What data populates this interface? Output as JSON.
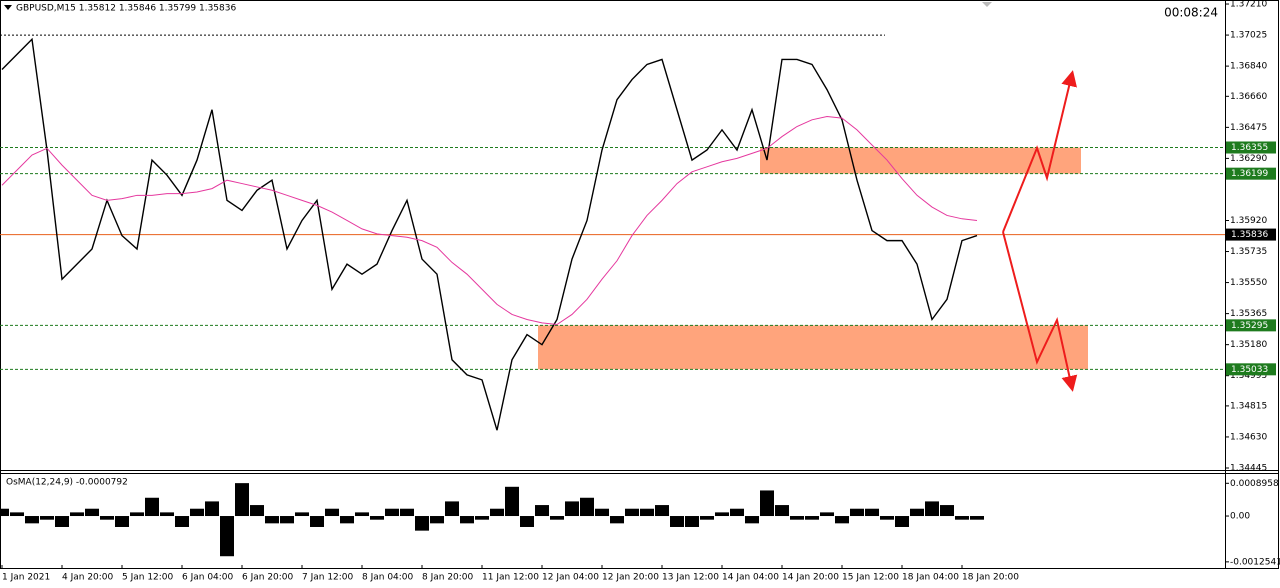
{
  "chart_data": {
    "type": "line",
    "title": "GBPUSD,M15  1.35812 1.35846 1.35799 1.35836",
    "timer": "00:08:24",
    "ylim": [
      1.34433,
      1.37234
    ],
    "yticks": [
      {
        "value": 1.3721,
        "label": "1.37210"
      },
      {
        "value": 1.37025,
        "label": "1.37025"
      },
      {
        "value": 1.3684,
        "label": "1.36840"
      },
      {
        "value": 1.3666,
        "label": "1.36660"
      },
      {
        "value": 1.36475,
        "label": "1.36475"
      },
      {
        "value": 1.3629,
        "label": "1.36290"
      },
      {
        "value": 1.3592,
        "label": "1.35920"
      },
      {
        "value": 1.35735,
        "label": "1.35735"
      },
      {
        "value": 1.3555,
        "label": "1.35550"
      },
      {
        "value": 1.35365,
        "label": "1.35365"
      },
      {
        "value": 1.3518,
        "label": "1.35180"
      },
      {
        "value": 1.34995,
        "label": "1.34995"
      },
      {
        "value": 1.34815,
        "label": "1.34815"
      },
      {
        "value": 1.3463,
        "label": "1.34630"
      },
      {
        "value": 1.34445,
        "label": "1.34445"
      }
    ],
    "top_line": 1.37025,
    "levels": [
      {
        "value": 1.36355,
        "label": "1.36355",
        "color": "#1e7b1e"
      },
      {
        "value": 1.36199,
        "label": "1.36199",
        "color": "#1e7b1e"
      },
      {
        "value": 1.35295,
        "label": "1.35295",
        "color": "#1e7b1e"
      },
      {
        "value": 1.35033,
        "label": "1.35033",
        "color": "#1e7b1e"
      }
    ],
    "current_price": {
      "value": 1.35836,
      "label": "1.35836",
      "color": "#000000",
      "line_color": "#e8601c"
    },
    "zone_color": "#ffa47c",
    "categories": [
      "1 Jan 2021",
      null,
      null,
      null,
      "4 Jan 20:00",
      null,
      null,
      null,
      "5 Jan 12:00",
      null,
      null,
      null,
      "6 Jan 04:00",
      null,
      null,
      null,
      "6 Jan 20:00",
      null,
      null,
      null,
      "7 Jan 12:00",
      null,
      null,
      null,
      "8 Jan 04:00",
      null,
      null,
      null,
      "8 Jan 20:00",
      null,
      null,
      null,
      "11 Jan 12:00",
      null,
      null,
      null,
      "12 Jan 04:00",
      null,
      null,
      null,
      "12 Jan 20:00",
      null,
      null,
      null,
      "13 Jan 12:00",
      null,
      null,
      null,
      "14 Jan 04:00",
      null,
      null,
      null,
      "14 Jan 20:00",
      null,
      null,
      null,
      "15 Jan 12:00",
      null,
      null,
      null,
      "18 Jan 04:00",
      null,
      null,
      null,
      "18 Jan 20:00",
      null
    ],
    "series": [
      {
        "color": "#000000",
        "values": [
          1.3682,
          1.3691,
          1.37,
          1.3634,
          1.3557,
          1.3566,
          1.3575,
          1.3604,
          1.3583,
          1.3575,
          1.3628,
          1.3619,
          1.3607,
          1.3628,
          1.3658,
          1.3604,
          1.3598,
          1.361,
          1.3616,
          1.3575,
          1.3592,
          1.3604,
          1.3551,
          1.3566,
          1.356,
          1.3566,
          1.3586,
          1.3604,
          1.3569,
          1.356,
          1.3509,
          1.35,
          1.3497,
          1.3467,
          1.3509,
          1.3524,
          1.3518,
          1.3533,
          1.3569,
          1.3592,
          1.3634,
          1.3664,
          1.3676,
          1.3685,
          1.3688,
          1.3658,
          1.3628,
          1.3634,
          1.3646,
          1.3634,
          1.3658,
          1.3628,
          1.3688,
          1.3688,
          1.3685,
          1.367,
          1.3652,
          1.3616,
          1.3586,
          1.358,
          1.358,
          1.3566,
          1.3533,
          1.3545,
          1.358,
          1.3583
        ]
      },
      {
        "color": "#e5389e",
        "values": [
          1.3613,
          1.3622,
          1.3631,
          1.3635,
          1.3625,
          1.3616,
          1.3607,
          1.3604,
          1.3605,
          1.3607,
          1.3607,
          1.3608,
          1.3608,
          1.3609,
          1.3611,
          1.3616,
          1.3614,
          1.3612,
          1.361,
          1.3607,
          1.3604,
          1.3601,
          1.3597,
          1.3592,
          1.3587,
          1.3584,
          1.3583,
          1.3582,
          1.358,
          1.3576,
          1.3567,
          1.356,
          1.3551,
          1.3542,
          1.3536,
          1.3533,
          1.3531,
          1.353,
          1.3536,
          1.3545,
          1.3557,
          1.3568,
          1.3583,
          1.3595,
          1.3604,
          1.3614,
          1.3621,
          1.3624,
          1.3627,
          1.3629,
          1.3632,
          1.3635,
          1.3642,
          1.3648,
          1.3652,
          1.3654,
          1.3653,
          1.3646,
          1.3637,
          1.3628,
          1.3617,
          1.3607,
          1.36,
          1.3595,
          1.3593,
          1.3592
        ]
      }
    ],
    "oscillator": {
      "label": "OsMA(12,24,9) -0.0000792",
      "color": "#000000",
      "ylim": [
        -0.00134,
        0.00115
      ],
      "yticks": [
        0.0008958,
        {
          "value": 0,
          "label": "0.00"
        },
        -0.0012541
      ],
      "values": [
        0.0002,
        0.0001,
        -0.0002,
        -0.0001,
        -0.0003,
        0.0001,
        0.0002,
        -0.0001,
        -0.0003,
        0.0001,
        0.0005,
        0.0001,
        -0.0003,
        0.0002,
        0.0004,
        -0.0011,
        0.0009,
        0.0003,
        -0.0002,
        -0.0002,
        0.0001,
        -0.0003,
        0.0002,
        -0.0002,
        0.0001,
        -0.0001,
        0.0002,
        0.0002,
        -0.0004,
        -0.0002,
        0.0004,
        -0.0002,
        -0.0001,
        0.0002,
        0.0008,
        -0.0003,
        0.0003,
        -0.0001,
        0.0004,
        0.0005,
        0.0002,
        -0.0002,
        0.0002,
        0.0002,
        0.0003,
        -0.0003,
        -0.0003,
        -0.0001,
        0.0001,
        0.0002,
        -0.0002,
        0.0007,
        0.0003,
        -0.0001,
        -0.0001,
        0.0001,
        -0.0002,
        0.0002,
        0.0002,
        -0.0001,
        -0.0003,
        0.0002,
        0.0004,
        0.0003,
        -0.0001,
        -0.0001
      ]
    }
  }
}
